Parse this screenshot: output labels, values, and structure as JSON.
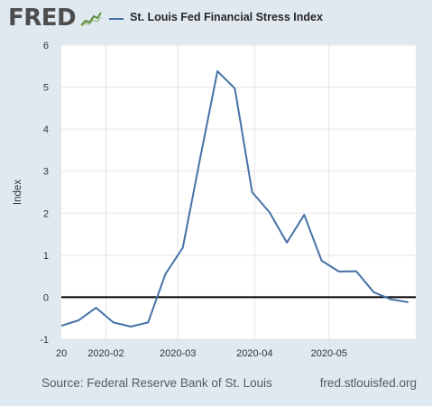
{
  "header": {
    "logo_text": "FRED",
    "logo_icon": "fred-trend-graph-icon"
  },
  "footer": {
    "source": "Source: Federal Reserve Bank of St. Louis",
    "url": "fred.stlouisfed.org"
  },
  "colors": {
    "background": "#e1e9f0",
    "plot_background": "#ffffff",
    "series_line": "#4572a7",
    "zero_line": "#000000",
    "grid": "#e6e6e6"
  },
  "chart_data": {
    "type": "line",
    "title": "",
    "xlabel": "",
    "ylabel": "Index",
    "ylim": [
      -1,
      6
    ],
    "xlim": [
      "2020-01-14",
      "2020-06-05"
    ],
    "yticks": [
      -1,
      0,
      1,
      2,
      3,
      4,
      5,
      6
    ],
    "xticks": [
      {
        "date": "2020-01-14",
        "label": "20"
      },
      {
        "date": "2020-02-01",
        "label": "2020-02"
      },
      {
        "date": "2020-03-01",
        "label": "2020-03"
      },
      {
        "date": "2020-04-01",
        "label": "2020-04"
      },
      {
        "date": "2020-05-01",
        "label": "2020-05"
      }
    ],
    "grid": true,
    "legend_position": "top",
    "reference_line": 0,
    "series": [
      {
        "name": "St. Louis Fed Financial Stress Index",
        "x": [
          "2020-01-14",
          "2020-01-21",
          "2020-01-28",
          "2020-02-04",
          "2020-02-11",
          "2020-02-18",
          "2020-02-25",
          "2020-03-03",
          "2020-03-10",
          "2020-03-17",
          "2020-03-24",
          "2020-03-31",
          "2020-04-07",
          "2020-04-14",
          "2020-04-21",
          "2020-04-28",
          "2020-05-05",
          "2020-05-12",
          "2020-05-19",
          "2020-05-26",
          "2020-06-02"
        ],
        "y": [
          -0.68,
          -0.55,
          -0.25,
          -0.6,
          -0.7,
          -0.6,
          0.55,
          1.18,
          3.3,
          5.38,
          4.97,
          2.5,
          2.02,
          1.3,
          1.96,
          0.87,
          0.61,
          0.62,
          0.12,
          -0.05,
          -0.12
        ]
      }
    ]
  }
}
